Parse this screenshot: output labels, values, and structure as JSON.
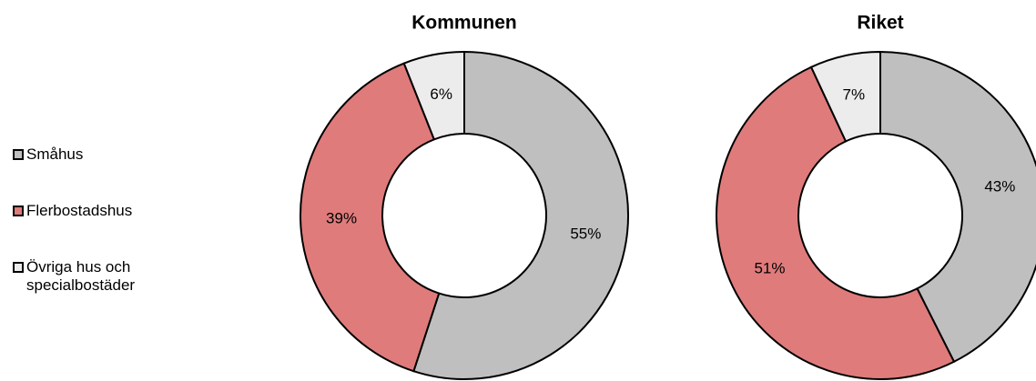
{
  "legend": {
    "labels": [
      "Småhus",
      "Flerbostadshus",
      "Övriga hus och specialbostäder"
    ],
    "colors": [
      "#bfbfbf",
      "#e07b7b",
      "#ececec"
    ]
  },
  "chart_data": [
    {
      "type": "donut",
      "title": "Kommunen",
      "values": [
        55,
        39,
        6
      ],
      "value_labels": [
        "55%",
        "39%",
        "6%"
      ]
    },
    {
      "type": "donut",
      "title": "Riket",
      "values": [
        43,
        51,
        7
      ],
      "value_labels": [
        "43%",
        "51%",
        "7%"
      ]
    }
  ]
}
